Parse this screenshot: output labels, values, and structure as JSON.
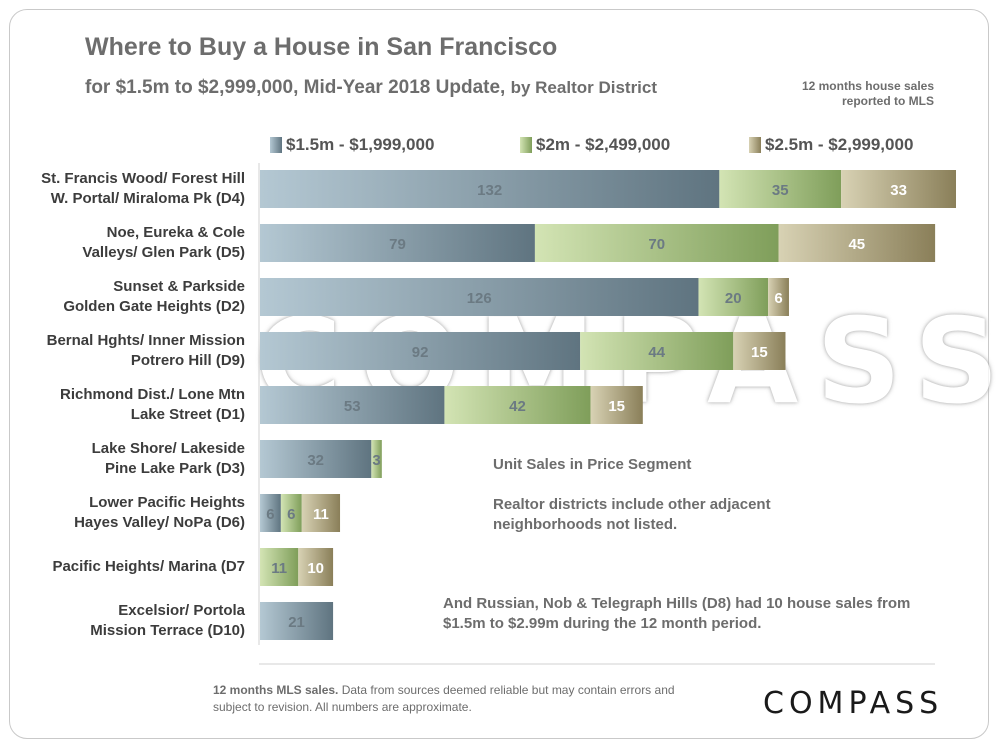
{
  "title": "Where to Buy a House in San Francisco",
  "subtitle_main": "for $1.5m to $2,999,000, Mid-Year 2018 Update,",
  "subtitle_by": "by Realtor District",
  "note_top_right": "12 months house sales reported to MLS",
  "watermark": "COMPASS",
  "annotations": {
    "unit_sales": "Unit Sales in Price Segment",
    "districts_note": "Realtor districts include other adjacent neighborhoods not listed.",
    "d8_note": "And Russian, Nob & Telegraph Hills (D8) had 10 house sales from $1.5m to $2.99m during the 12 month period."
  },
  "footer": {
    "bold": "12 months MLS sales.",
    "text": " Data from sources deemed reliable but may contain errors and subject to revision. All numbers are approximate."
  },
  "logo": "COMPASS",
  "colors": {
    "series1": "#8fa8b6",
    "series2": "#b8d293",
    "series3": "#b7ad86",
    "label_light": "#6b7a83",
    "label_white": "#ffffff"
  },
  "chart_data": {
    "type": "bar",
    "orientation": "horizontal",
    "stacked": true,
    "legend_position": "top",
    "categories": [
      "St. Francis Wood/ Forest Hill\nW. Portal/ Miraloma Pk (D4)",
      "Noe, Eureka & Cole\nValleys/ Glen Park (D5)",
      "Sunset & Parkside\nGolden Gate Heights (D2)",
      "Bernal Hghts/ Inner Mission\nPotrero Hill (D9)",
      "Richmond Dist./ Lone Mtn\nLake Street (D1)",
      "Lake Shore/ Lakeside\nPine Lake Park (D3)",
      "Lower Pacific Heights\nHayes Valley/ NoPa (D6)",
      "Pacific Heights/ Marina (D7",
      "Excelsior/ Portola\nMission Terrace (D10)"
    ],
    "series": [
      {
        "name": "$1.5m - $1,999,000",
        "values": [
          132,
          79,
          126,
          92,
          53,
          32,
          6,
          0,
          21
        ]
      },
      {
        "name": "$2m - $2,499,000",
        "values": [
          35,
          70,
          20,
          44,
          42,
          3,
          6,
          11,
          0
        ]
      },
      {
        "name": "$2.5m - $2,999,000",
        "values": [
          33,
          45,
          6,
          15,
          15,
          0,
          11,
          10,
          0
        ]
      }
    ],
    "xlim": [
      0,
      200
    ],
    "grid": false
  }
}
